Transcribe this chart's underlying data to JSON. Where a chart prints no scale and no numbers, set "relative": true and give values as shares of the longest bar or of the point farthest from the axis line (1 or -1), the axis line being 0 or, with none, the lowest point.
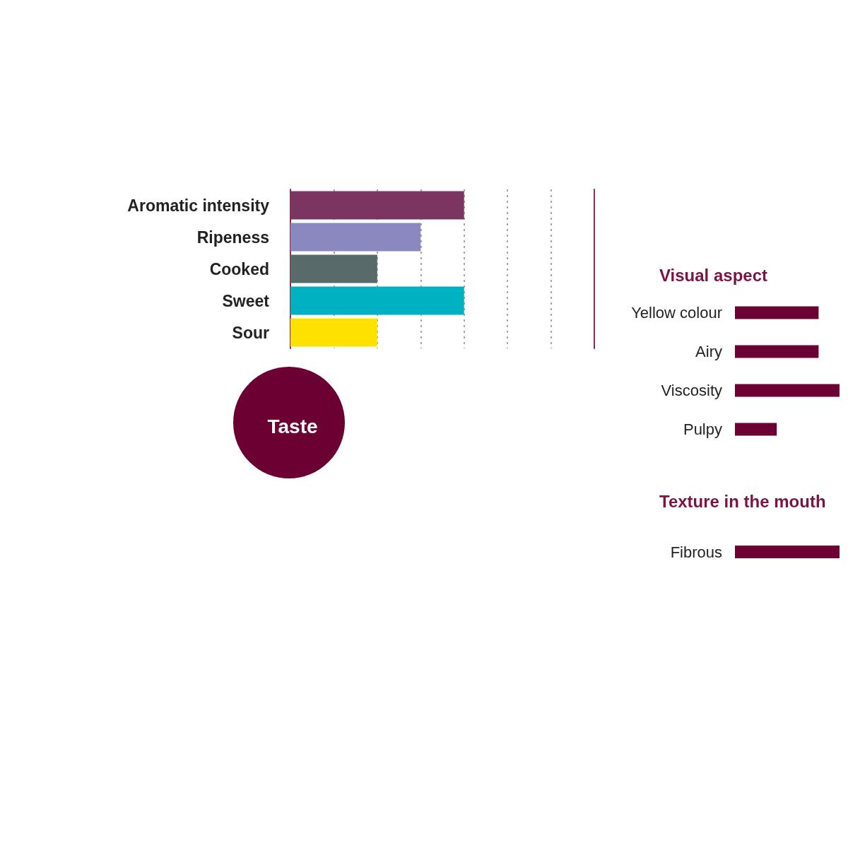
{
  "chart_data": [
    {
      "type": "bar",
      "orientation": "horizontal",
      "title": "Taste",
      "categories": [
        "Aromatic intensity",
        "Ripeness",
        "Cooked",
        "Sweet",
        "Sour"
      ],
      "values": [
        1,
        0.75,
        0.5,
        1,
        0.5
      ],
      "colors": [
        "#7b3561",
        "#8b88bf",
        "#586a6a",
        "#00b2c1",
        "#ffe100"
      ],
      "relative": true,
      "grid": true
    },
    {
      "type": "bar",
      "orientation": "horizontal",
      "title": "Visual aspect",
      "categories": [
        "Yellow colour",
        "Airy",
        "Viscosity",
        "Pulpy"
      ],
      "values": [
        0.8,
        0.8,
        1,
        0.4
      ],
      "color": "#6b0033",
      "relative": true
    },
    {
      "type": "bar",
      "orientation": "horizontal",
      "title": "Texture in the mouth",
      "categories": [
        "Fibrous"
      ],
      "values": [
        1
      ],
      "color": "#6b0033",
      "relative": true
    }
  ]
}
